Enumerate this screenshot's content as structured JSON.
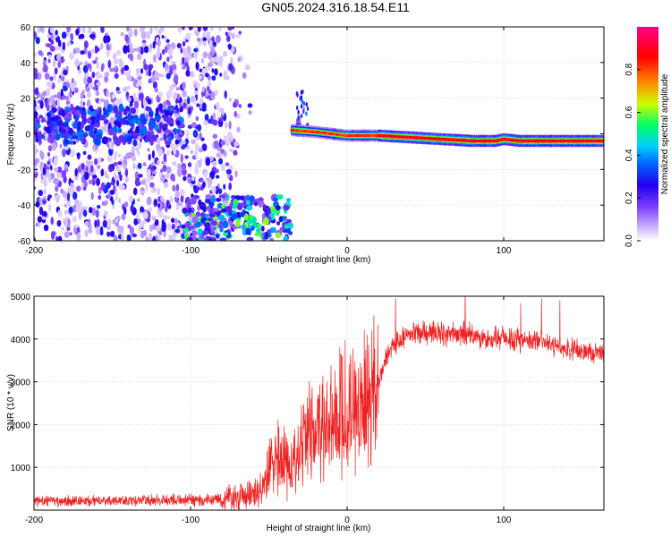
{
  "title": "GN05.2024.316.18.54.E11",
  "chart_data": [
    {
      "type": "heatmap",
      "xlabel": "Height of straight line (km)",
      "ylabel": "Frequency (Hz)",
      "xlim": [
        -200,
        164
      ],
      "ylim": [
        -60,
        60
      ],
      "xticks": [
        -200,
        -100,
        0,
        100
      ],
      "xtick_labels": [
        "-200",
        "-100",
        "0",
        "100"
      ],
      "yticks": [
        -60,
        -40,
        -20,
        0,
        20,
        40,
        60
      ],
      "ytick_labels": [
        "-60",
        "-40",
        "-20",
        "0",
        "20",
        "40",
        "60"
      ],
      "colorbar": {
        "label": "Normalized spectral amplitude",
        "range": [
          0,
          1
        ],
        "ticks": [
          0,
          0.2,
          0.4,
          0.6,
          0.8
        ],
        "tick_labels": [
          "0.0",
          "0.2",
          "0.4",
          "0.6",
          "0.8"
        ],
        "colors": [
          "#ffffff",
          "#b088ff",
          "#4400ee",
          "#0044ff",
          "#00ccff",
          "#00ff66",
          "#ccff00",
          "#ff8800",
          "#ff0000",
          "#ff0088"
        ]
      },
      "features": [
        {
          "name": "noise band",
          "x": [
            -200,
            -60
          ],
          "y": [
            -60,
            60
          ],
          "amplitude": 0.15
        },
        {
          "name": "dense band near 0 Hz",
          "x": [
            -200,
            -105
          ],
          "y": [
            -5,
            15
          ],
          "amplitude": 0.25
        },
        {
          "name": "low frequency cluster",
          "x": [
            -105,
            -35
          ],
          "y": [
            -60,
            -35
          ],
          "amplitude": 0.5
        },
        {
          "name": "signal trace",
          "x": [
            -35,
            164
          ],
          "y": [
            -4,
            3
          ],
          "amplitude": 0.95
        }
      ],
      "trace": {
        "x": [
          -35,
          -20,
          -10,
          0,
          20,
          40,
          60,
          80,
          95,
          100,
          110,
          130,
          164
        ],
        "y": [
          2,
          1,
          0,
          -1,
          -1,
          -2,
          -3,
          -4,
          -4,
          -3,
          -4,
          -4,
          -4
        ]
      },
      "grid": true
    },
    {
      "type": "line",
      "xlabel": "Height of straight line (km)",
      "ylabel": "SNR (10 * v/v)",
      "xlim": [
        -200,
        164
      ],
      "ylim": [
        0,
        5000
      ],
      "xticks": [
        -200,
        -100,
        0,
        100
      ],
      "xtick_labels": [
        "-200",
        "-100",
        "0",
        "100"
      ],
      "yticks": [
        1000,
        2000,
        3000,
        4000,
        5000
      ],
      "ytick_labels": [
        "1000",
        "2000",
        "3000",
        "4000",
        "5000"
      ],
      "color": "#ee2222",
      "grid": true,
      "series": [
        {
          "x": [
            -200,
            -180,
            -160,
            -140,
            -120,
            -100,
            -80,
            -70,
            -60,
            -55,
            -50,
            -45,
            -40,
            -35,
            -30,
            -25,
            -20,
            -15,
            -10,
            -5,
            0,
            5,
            10,
            15,
            20,
            25,
            30,
            40,
            50,
            60,
            70,
            80,
            90,
            100,
            110,
            120,
            130,
            140,
            150,
            164
          ],
          "values": [
            200,
            210,
            215,
            220,
            225,
            230,
            260,
            300,
            330,
            450,
            900,
            1300,
            1200,
            900,
            1300,
            1800,
            1700,
            2000,
            2200,
            2200,
            2300,
            2400,
            2500,
            2600,
            3000,
            3600,
            3900,
            4100,
            4150,
            4150,
            4100,
            4080,
            4000,
            4050,
            3950,
            3950,
            3850,
            3800,
            3700,
            3650
          ]
        }
      ]
    }
  ]
}
